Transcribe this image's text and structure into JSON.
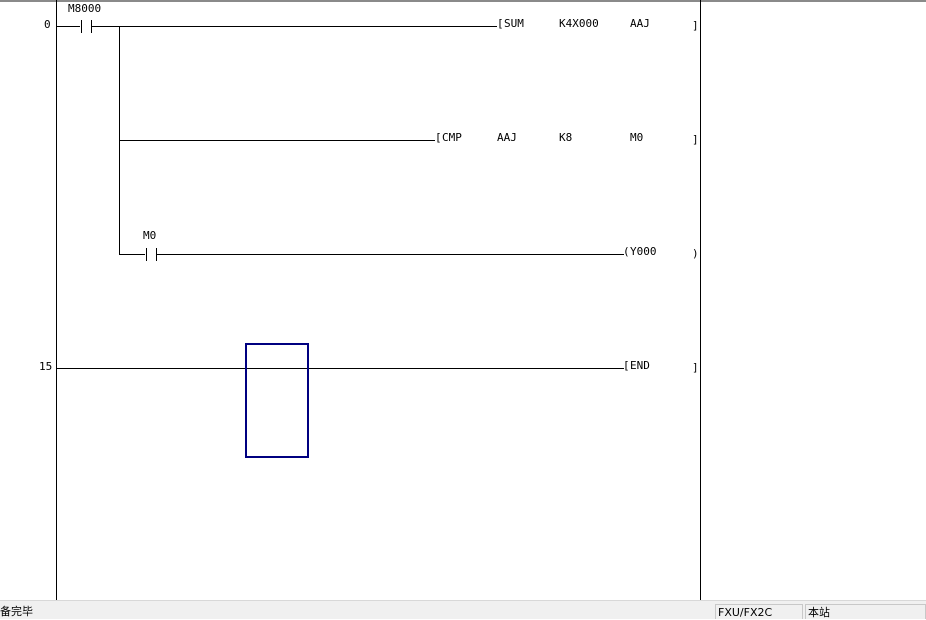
{
  "ladder": {
    "steps": [
      "0",
      "15"
    ],
    "rung1": {
      "contact": "M8000",
      "sum": {
        "op": "SUM",
        "arg1": "K4X000",
        "arg2": "AAJ"
      },
      "cmp": {
        "op": "CMP",
        "arg1": "AAJ",
        "arg2": "K8",
        "arg3": "M0"
      },
      "contact2": "M0",
      "coil": "Y000"
    },
    "end": "END"
  },
  "status": {
    "message": "备完毕",
    "plc_type": "FXU/FX2C",
    "station": "本站"
  },
  "colors": {
    "cursor": "#000080"
  }
}
